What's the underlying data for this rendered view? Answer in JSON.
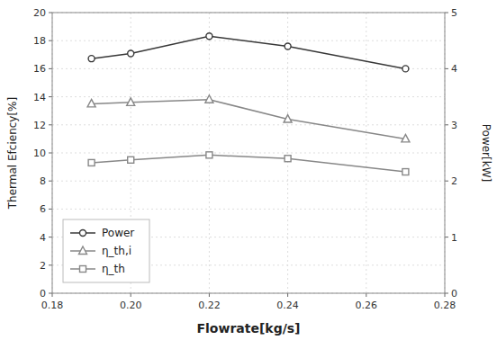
{
  "chart_data": {
    "type": "line",
    "x": [
      0.19,
      0.2,
      0.22,
      0.24,
      0.27
    ],
    "xlabel": "Flowrate[kg/s]",
    "ylabel": "Thermal Efciency[%]",
    "y2label": "Power[kW]",
    "xlim": [
      0.18,
      0.28
    ],
    "xticks": [
      0.18,
      {
        "value": 0.2,
        "label": "0.20"
      },
      0.22,
      0.24,
      0.26,
      0.28
    ],
    "ylim": [
      0,
      20
    ],
    "yticks": [
      0,
      2,
      4,
      6,
      8,
      10,
      12,
      14,
      16,
      18,
      20
    ],
    "y2lim": [
      0,
      5
    ],
    "y2ticks": [
      0,
      1,
      2,
      3,
      4,
      5
    ],
    "grid": true,
    "legend": "lower left",
    "series": [
      {
        "name": "Power",
        "axis": "y2",
        "color": "#383838",
        "marker": "circle",
        "values": [
          4.18,
          4.27,
          4.58,
          4.4,
          4.0
        ]
      },
      {
        "name": "η_th,i",
        "color": "#888888",
        "marker": "triangle",
        "values": [
          13.5,
          13.6,
          13.8,
          12.4,
          11.0
        ]
      },
      {
        "name": "η_th",
        "color": "#888888",
        "marker": "square",
        "values": [
          9.3,
          9.5,
          9.85,
          9.6,
          8.65
        ]
      }
    ]
  }
}
